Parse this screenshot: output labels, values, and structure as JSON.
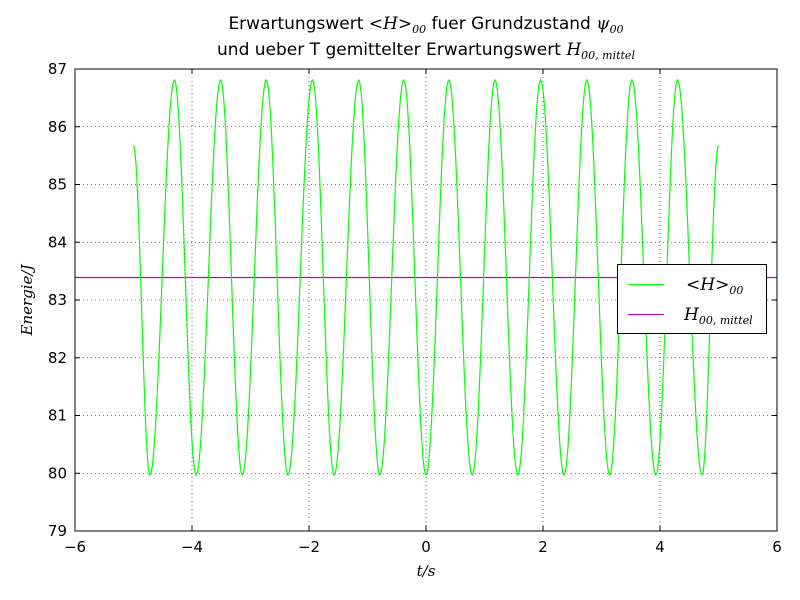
{
  "chart_data": {
    "type": "line",
    "title_line1": {
      "prefix": "Erwartungswert ",
      "math": "<H>",
      "math_sub": "00",
      "middle": " fuer Grundzustand ",
      "psi": "ψ",
      "psi_sub": "00"
    },
    "title_line2": {
      "prefix": "und ueber T gemittelter Erwartungswert ",
      "math": "H",
      "math_sub": "00, mittel"
    },
    "xlabel": "t/s",
    "ylabel": "Energie/J",
    "xlim": [
      -6,
      6
    ],
    "ylim": [
      79,
      87
    ],
    "x_ticks": [
      "−6",
      "−4",
      "−2",
      "0",
      "2",
      "4",
      "6"
    ],
    "y_ticks": [
      "79",
      "80",
      "81",
      "82",
      "83",
      "84",
      "85",
      "86",
      "87"
    ],
    "grid": true,
    "legend_position": "right",
    "series": [
      {
        "name": "<H>00",
        "legend_math": "<H>",
        "legend_sub": "00",
        "color": "#00ff00",
        "kind": "oscillation",
        "x_range": [
          -5,
          5
        ],
        "min": 79.97,
        "max": 86.81,
        "peaks_x": [
          -4.3,
          -3.51,
          -2.73,
          -1.94,
          -1.15,
          -0.38,
          0.39,
          1.18,
          1.96,
          2.75,
          3.52,
          4.3
        ],
        "troughs_x": [
          -4.72,
          -3.93,
          -3.14,
          -2.36,
          -1.57,
          -0.79,
          0.0,
          0.79,
          1.57,
          2.36,
          3.14,
          3.93,
          4.72
        ],
        "start_value": 85.67,
        "end_value": 85.67
      },
      {
        "name": "H00, mittel",
        "legend_math": "H",
        "legend_sub": "00, mittel",
        "color": "#bf00bf",
        "kind": "constant",
        "value": 83.39
      }
    ]
  }
}
